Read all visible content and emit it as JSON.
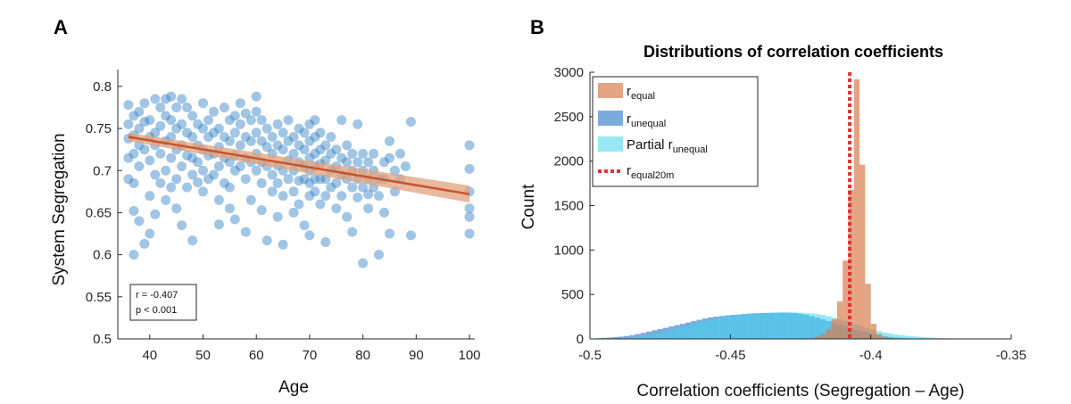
{
  "colors": {
    "scatter": "#2f7fc4",
    "fit_line": "#c9542b",
    "ci_band": "#e0a27d",
    "r_equal": "#d97c4e",
    "r_unequal": "#4f8fd0",
    "partial": "#40d6ee",
    "ref_line": "#e8302c"
  },
  "chart_data": [
    {
      "panel_label": "A",
      "type": "scatter",
      "title": "",
      "xlabel": "Age",
      "ylabel": "System Segregation",
      "xlim": [
        34,
        101
      ],
      "ylim": [
        0.5,
        0.82
      ],
      "xticks": [
        40,
        50,
        60,
        70,
        80,
        90,
        100
      ],
      "yticks": [
        0.5,
        0.55,
        0.6,
        0.65,
        0.7,
        0.75,
        0.8
      ],
      "xtick_labels": [
        "40",
        "50",
        "60",
        "70",
        "80",
        "90",
        "100"
      ],
      "ytick_labels": [
        "0.5",
        "0.55",
        "0.6",
        "0.65",
        "0.7",
        "0.75",
        "0.8"
      ],
      "fit": {
        "x": [
          36,
          100
        ],
        "y": [
          0.74,
          0.672
        ],
        "ci_half_width_start": 0.005,
        "ci_half_width_end": 0.01
      },
      "annotation": {
        "r_label": "r = -0.407",
        "p_label": "p < 0.001"
      },
      "points": [
        [
          36,
          0.778
        ],
        [
          36,
          0.755
        ],
        [
          36,
          0.738
        ],
        [
          36,
          0.715
        ],
        [
          36,
          0.69
        ],
        [
          37,
          0.765
        ],
        [
          37,
          0.742
        ],
        [
          37,
          0.72
        ],
        [
          37,
          0.685
        ],
        [
          37,
          0.6
        ],
        [
          37,
          0.652
        ],
        [
          38,
          0.77
        ],
        [
          38,
          0.75
        ],
        [
          38,
          0.73
        ],
        [
          38,
          0.705
        ],
        [
          38,
          0.64
        ],
        [
          39,
          0.78
        ],
        [
          39,
          0.758
        ],
        [
          39,
          0.725
        ],
        [
          39,
          0.613
        ],
        [
          40,
          0.76
        ],
        [
          40,
          0.74
        ],
        [
          40,
          0.712
        ],
        [
          40,
          0.67
        ],
        [
          40,
          0.625
        ],
        [
          41,
          0.785
        ],
        [
          41,
          0.745
        ],
        [
          41,
          0.73
        ],
        [
          41,
          0.695
        ],
        [
          41,
          0.648
        ],
        [
          42,
          0.775
        ],
        [
          42,
          0.753
        ],
        [
          42,
          0.72
        ],
        [
          42,
          0.685
        ],
        [
          43,
          0.785
        ],
        [
          43,
          0.765
        ],
        [
          43,
          0.735
        ],
        [
          43,
          0.7
        ],
        [
          43,
          0.665
        ],
        [
          44,
          0.788
        ],
        [
          44,
          0.76
        ],
        [
          44,
          0.74
        ],
        [
          44,
          0.715
        ],
        [
          44,
          0.68
        ],
        [
          45,
          0.775
        ],
        [
          45,
          0.75
        ],
        [
          45,
          0.725
        ],
        [
          45,
          0.69
        ],
        [
          45,
          0.655
        ],
        [
          46,
          0.785
        ],
        [
          46,
          0.755
        ],
        [
          46,
          0.73
        ],
        [
          46,
          0.705
        ],
        [
          46,
          0.635
        ],
        [
          47,
          0.775
        ],
        [
          47,
          0.745
        ],
        [
          47,
          0.718
        ],
        [
          47,
          0.68
        ],
        [
          48,
          0.765
        ],
        [
          48,
          0.74
        ],
        [
          48,
          0.715
        ],
        [
          48,
          0.695
        ],
        [
          48,
          0.617
        ],
        [
          49,
          0.755
        ],
        [
          49,
          0.73
        ],
        [
          49,
          0.71
        ],
        [
          49,
          0.686
        ],
        [
          50,
          0.78
        ],
        [
          50,
          0.75
        ],
        [
          50,
          0.725
        ],
        [
          50,
          0.7
        ],
        [
          50,
          0.675
        ],
        [
          51,
          0.76
        ],
        [
          51,
          0.74
        ],
        [
          51,
          0.718
        ],
        [
          51,
          0.69
        ],
        [
          52,
          0.77
        ],
        [
          52,
          0.745
        ],
        [
          52,
          0.72
        ],
        [
          52,
          0.695
        ],
        [
          53,
          0.75
        ],
        [
          53,
          0.728
        ],
        [
          53,
          0.705
        ],
        [
          53,
          0.665
        ],
        [
          53,
          0.636
        ],
        [
          54,
          0.775
        ],
        [
          54,
          0.74
        ],
        [
          54,
          0.715
        ],
        [
          54,
          0.685
        ],
        [
          55,
          0.76
        ],
        [
          55,
          0.735
        ],
        [
          55,
          0.71
        ],
        [
          55,
          0.68
        ],
        [
          55,
          0.655
        ],
        [
          56,
          0.765
        ],
        [
          56,
          0.745
        ],
        [
          56,
          0.718
        ],
        [
          56,
          0.7
        ],
        [
          56,
          0.642
        ],
        [
          57,
          0.78
        ],
        [
          57,
          0.755
        ],
        [
          57,
          0.73
        ],
        [
          57,
          0.705
        ],
        [
          58,
          0.768
        ],
        [
          58,
          0.74
        ],
        [
          58,
          0.715
        ],
        [
          58,
          0.69
        ],
        [
          58,
          0.627
        ],
        [
          59,
          0.76
        ],
        [
          59,
          0.735
        ],
        [
          59,
          0.71
        ],
        [
          59,
          0.665
        ],
        [
          60,
          0.788
        ],
        [
          60,
          0.77
        ],
        [
          60,
          0.745
        ],
        [
          60,
          0.72
        ],
        [
          60,
          0.7
        ],
        [
          61,
          0.76
        ],
        [
          61,
          0.735
        ],
        [
          61,
          0.71
        ],
        [
          61,
          0.685
        ],
        [
          61,
          0.653
        ],
        [
          62,
          0.75
        ],
        [
          62,
          0.728
        ],
        [
          62,
          0.705
        ],
        [
          62,
          0.617
        ],
        [
          63,
          0.74
        ],
        [
          63,
          0.72
        ],
        [
          63,
          0.695
        ],
        [
          63,
          0.675
        ],
        [
          64,
          0.755
        ],
        [
          64,
          0.73
        ],
        [
          64,
          0.706
        ],
        [
          64,
          0.685
        ],
        [
          64,
          0.645
        ],
        [
          65,
          0.745
        ],
        [
          65,
          0.725
        ],
        [
          65,
          0.7
        ],
        [
          65,
          0.67
        ],
        [
          65,
          0.612
        ],
        [
          66,
          0.76
        ],
        [
          66,
          0.735
        ],
        [
          66,
          0.712
        ],
        [
          66,
          0.69
        ],
        [
          67,
          0.74
        ],
        [
          67,
          0.72
        ],
        [
          67,
          0.7
        ],
        [
          67,
          0.675
        ],
        [
          67,
          0.65
        ],
        [
          68,
          0.75
        ],
        [
          68,
          0.73
        ],
        [
          68,
          0.71
        ],
        [
          68,
          0.688
        ],
        [
          68,
          0.66
        ],
        [
          69,
          0.745
        ],
        [
          69,
          0.725
        ],
        [
          69,
          0.705
        ],
        [
          69,
          0.69
        ],
        [
          69,
          0.635
        ],
        [
          70,
          0.755
        ],
        [
          70,
          0.735
        ],
        [
          70,
          0.715
        ],
        [
          70,
          0.7
        ],
        [
          70,
          0.685
        ],
        [
          70,
          0.67
        ],
        [
          70,
          0.623
        ],
        [
          71,
          0.76
        ],
        [
          71,
          0.74
        ],
        [
          71,
          0.72
        ],
        [
          71,
          0.705
        ],
        [
          71,
          0.69
        ],
        [
          71,
          0.675
        ],
        [
          72,
          0.745
        ],
        [
          72,
          0.725
        ],
        [
          72,
          0.708
        ],
        [
          72,
          0.69
        ],
        [
          72,
          0.66
        ],
        [
          73,
          0.73
        ],
        [
          73,
          0.712
        ],
        [
          73,
          0.69
        ],
        [
          73,
          0.67
        ],
        [
          73,
          0.615
        ],
        [
          74,
          0.74
        ],
        [
          74,
          0.72
        ],
        [
          74,
          0.7
        ],
        [
          74,
          0.68
        ],
        [
          75,
          0.725
        ],
        [
          75,
          0.705
        ],
        [
          75,
          0.685
        ],
        [
          75,
          0.655
        ],
        [
          76,
          0.76
        ],
        [
          76,
          0.715
        ],
        [
          76,
          0.695
        ],
        [
          76,
          0.67
        ],
        [
          77,
          0.73
        ],
        [
          77,
          0.71
        ],
        [
          77,
          0.69
        ],
        [
          77,
          0.645
        ],
        [
          78,
          0.72
        ],
        [
          78,
          0.7
        ],
        [
          78,
          0.68
        ],
        [
          78,
          0.627
        ],
        [
          79,
          0.755
        ],
        [
          79,
          0.71
        ],
        [
          79,
          0.69
        ],
        [
          79,
          0.668
        ],
        [
          80,
          0.72
        ],
        [
          80,
          0.7
        ],
        [
          80,
          0.68
        ],
        [
          80,
          0.59
        ],
        [
          81,
          0.71
        ],
        [
          81,
          0.69
        ],
        [
          81,
          0.672
        ],
        [
          81,
          0.655
        ],
        [
          82,
          0.72
        ],
        [
          82,
          0.7
        ],
        [
          82,
          0.68
        ],
        [
          83,
          0.69
        ],
        [
          83,
          0.67
        ],
        [
          83,
          0.6
        ],
        [
          84,
          0.71
        ],
        [
          84,
          0.69
        ],
        [
          84,
          0.65
        ],
        [
          85,
          0.735
        ],
        [
          85,
          0.715
        ],
        [
          85,
          0.625
        ],
        [
          86,
          0.7
        ],
        [
          86,
          0.675
        ],
        [
          87,
          0.72
        ],
        [
          87,
          0.69
        ],
        [
          88,
          0.705
        ],
        [
          89,
          0.758
        ],
        [
          89,
          0.623
        ],
        [
          100,
          0.73
        ],
        [
          100,
          0.702
        ],
        [
          100,
          0.675
        ],
        [
          100,
          0.655
        ],
        [
          100,
          0.645
        ],
        [
          100,
          0.625
        ]
      ]
    },
    {
      "panel_label": "B",
      "type": "histogram",
      "title": "Distributions of correlation coefficients",
      "xlabel": "Correlation coefficients (Segregation – Age)",
      "ylabel": "Count",
      "xlim": [
        -0.5,
        -0.35
      ],
      "ylim": [
        0,
        3000
      ],
      "xticks": [
        -0.5,
        -0.45,
        -0.4,
        -0.35
      ],
      "yticks": [
        0,
        500,
        1000,
        1500,
        2000,
        2500,
        3000
      ],
      "xtick_labels": [
        "-0.5",
        "-0.45",
        "-0.4",
        "-0.35"
      ],
      "ytick_labels": [
        "0",
        "500",
        "1000",
        "1500",
        "2000",
        "2500",
        "3000"
      ],
      "legend_position": "top-left",
      "legend": [
        {
          "key": "r_equal",
          "base": "r",
          "sub": "equal"
        },
        {
          "key": "r_unequal",
          "base": "r",
          "sub": "unequal"
        },
        {
          "key": "partial",
          "base": "Partial r",
          "sub": "unequal"
        },
        {
          "key": "ref_line",
          "base": "r",
          "sub": "equal20m"
        }
      ],
      "series": [
        {
          "name": "r_unequal",
          "bin_width": 0.002,
          "bin_start": -0.5,
          "counts": [
            5,
            8,
            12,
            16,
            20,
            25,
            32,
            42,
            55,
            68,
            82,
            96,
            110,
            125,
            140,
            155,
            170,
            185,
            200,
            215,
            230,
            242,
            250,
            258,
            265,
            270,
            275,
            280,
            285,
            288,
            290,
            292,
            294,
            295,
            296,
            295,
            290,
            282,
            270,
            255,
            238,
            220,
            200,
            180,
            160,
            140,
            120,
            100,
            82,
            66,
            52,
            40,
            30,
            22,
            16,
            11,
            8,
            5,
            3,
            2
          ]
        },
        {
          "name": "partial_r_unequal",
          "bin_width": 0.002,
          "bin_start": -0.49,
          "counts": [
            4,
            8,
            13,
            20,
            28,
            38,
            50,
            64,
            80,
            96,
            114,
            132,
            150,
            168,
            185,
            200,
            215,
            228,
            240,
            250,
            260,
            268,
            275,
            280,
            285,
            290,
            292,
            295,
            297,
            298,
            298,
            297,
            295,
            292,
            288,
            280,
            270,
            255,
            238,
            220,
            200,
            180,
            160,
            140,
            120,
            102,
            86,
            72,
            60,
            50,
            42,
            35,
            29,
            24,
            20,
            16,
            12,
            9,
            7,
            5,
            3,
            2
          ]
        },
        {
          "name": "r_equal",
          "bin_width": 0.002,
          "bin_start": -0.42,
          "counts": [
            25,
            50,
            110,
            220,
            420,
            880,
            1680,
            2920,
            1960,
            620,
            170,
            55,
            20,
            10,
            5
          ]
        },
        {
          "name": "r_equal20m",
          "type": "vertical_line",
          "x": -0.4075
        }
      ]
    }
  ]
}
